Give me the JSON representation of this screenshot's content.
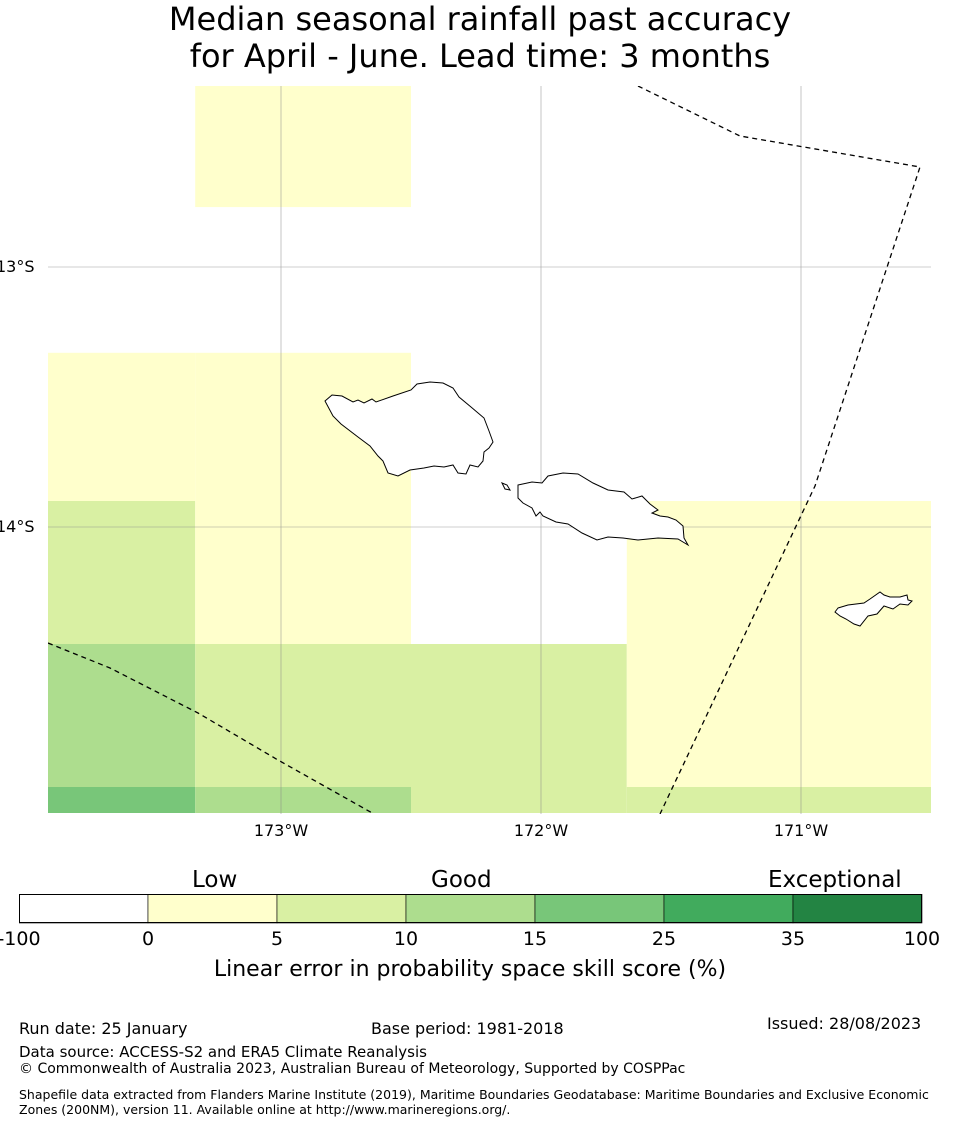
{
  "title": {
    "line1": "Median seasonal rainfall past accuracy",
    "line2": "for April - June. Lead time: 3 months"
  },
  "map": {
    "lat_labels": [
      "13°S",
      "14°S"
    ],
    "lon_labels": [
      "173°W",
      "172°W",
      "171°W"
    ],
    "land_outline_color": "#000000",
    "boundary_style": "dashed",
    "gridlines": true
  },
  "skill_grid": {
    "columns_lon": [
      [
        -173.9,
        -173.33
      ],
      [
        -173.33,
        -172.5
      ],
      [
        -172.5,
        -171.67
      ],
      [
        -171.67,
        -170.5
      ]
    ],
    "rows_lat": [
      [
        -12.3,
        -12.77
      ],
      [
        -12.77,
        -13.33
      ],
      [
        -13.33,
        -13.9
      ],
      [
        -13.9,
        -14.45
      ],
      [
        -14.45,
        -15.0
      ],
      [
        -15.0,
        -15.1
      ]
    ],
    "category_index": [
      [
        0,
        1,
        0,
        0
      ],
      [
        0,
        0,
        0,
        0
      ],
      [
        1,
        1,
        0,
        0
      ],
      [
        2,
        1,
        0,
        1
      ],
      [
        3,
        2,
        2,
        1
      ],
      [
        4,
        3,
        2,
        2
      ]
    ]
  },
  "colorbar": {
    "categories": [
      "Low",
      "Good",
      "Exceptional"
    ],
    "ticks": [
      "-100",
      "0",
      "5",
      "10",
      "15",
      "25",
      "35",
      "100"
    ],
    "colors": [
      "#ffffff",
      "#ffffcc",
      "#d9f0a3",
      "#addd8e",
      "#78c679",
      "#41ab5d",
      "#238443"
    ],
    "label": "Linear error in probability space skill score (%)"
  },
  "footer": {
    "run_date": "Run date: 25 January",
    "base_period": "Base period: 1981-2018",
    "issued": "Issued: 28/08/2023",
    "data_source": "Data source: ACCESS-S2 and ERA5 Climate Reanalysis",
    "copyright": "© Commonwealth of Australia 2023, Australian Bureau of Meteorology, Supported by COSPPac",
    "shapefile_note": "Shapefile data extracted from Flanders Marine Institute (2019), Maritime Boundaries Geodatabase: Maritime Boundaries and Exclusive Economic Zones (200NM), version 11. Available online at http://www.marineregions.org/."
  }
}
